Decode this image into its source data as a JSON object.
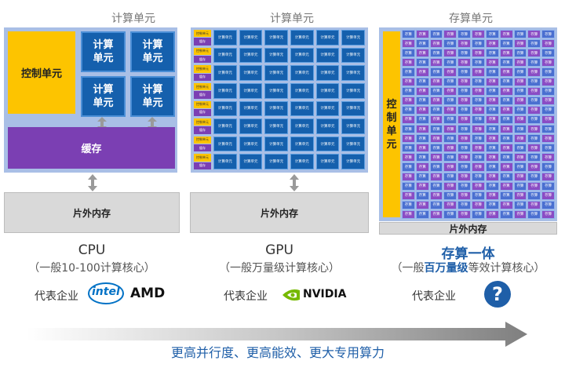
{
  "cpu": {
    "top_label": "计算单元",
    "control_unit": "控制单元",
    "compute_units": [
      "计算\n单元",
      "计算\n单元",
      "计算\n单元",
      "计算\n单元"
    ],
    "cache": "缓存",
    "offchip_memory": "片外内存",
    "name": "CPU",
    "desc": "（一般10-100计算核心）",
    "rep_label": "代表企业",
    "brands": [
      "intel",
      "AMD"
    ]
  },
  "gpu": {
    "top_label": "计算单元",
    "cell_text": "计算单元",
    "ctrl_text": "控制单元",
    "cache_text": "缓存",
    "offchip_memory": "片外内存",
    "name": "GPU",
    "desc": "（一般万量级计算核心）",
    "rep_label": "代表企业",
    "brand": "NVIDIA"
  },
  "pim": {
    "top_label": "存算单元",
    "cell_text": "存算",
    "control_unit": "控\n制\n单\n元",
    "offchip_memory": "片外内存",
    "name": "存算一体",
    "desc_prefix": "（一般",
    "desc_highlight": "百万量级",
    "desc_suffix": "等效计算核心）",
    "rep_label": "代表企业",
    "question_mark": "?"
  },
  "bottom_caption": "更高并行度、更高能效、更大专用算力",
  "colors": {
    "control": "#fdc400",
    "compute": "#1560ad",
    "cache": "#7b3fb3",
    "board": "#a9bfe6",
    "memory": "#d9d9d9",
    "accent": "#1f5fa8"
  }
}
